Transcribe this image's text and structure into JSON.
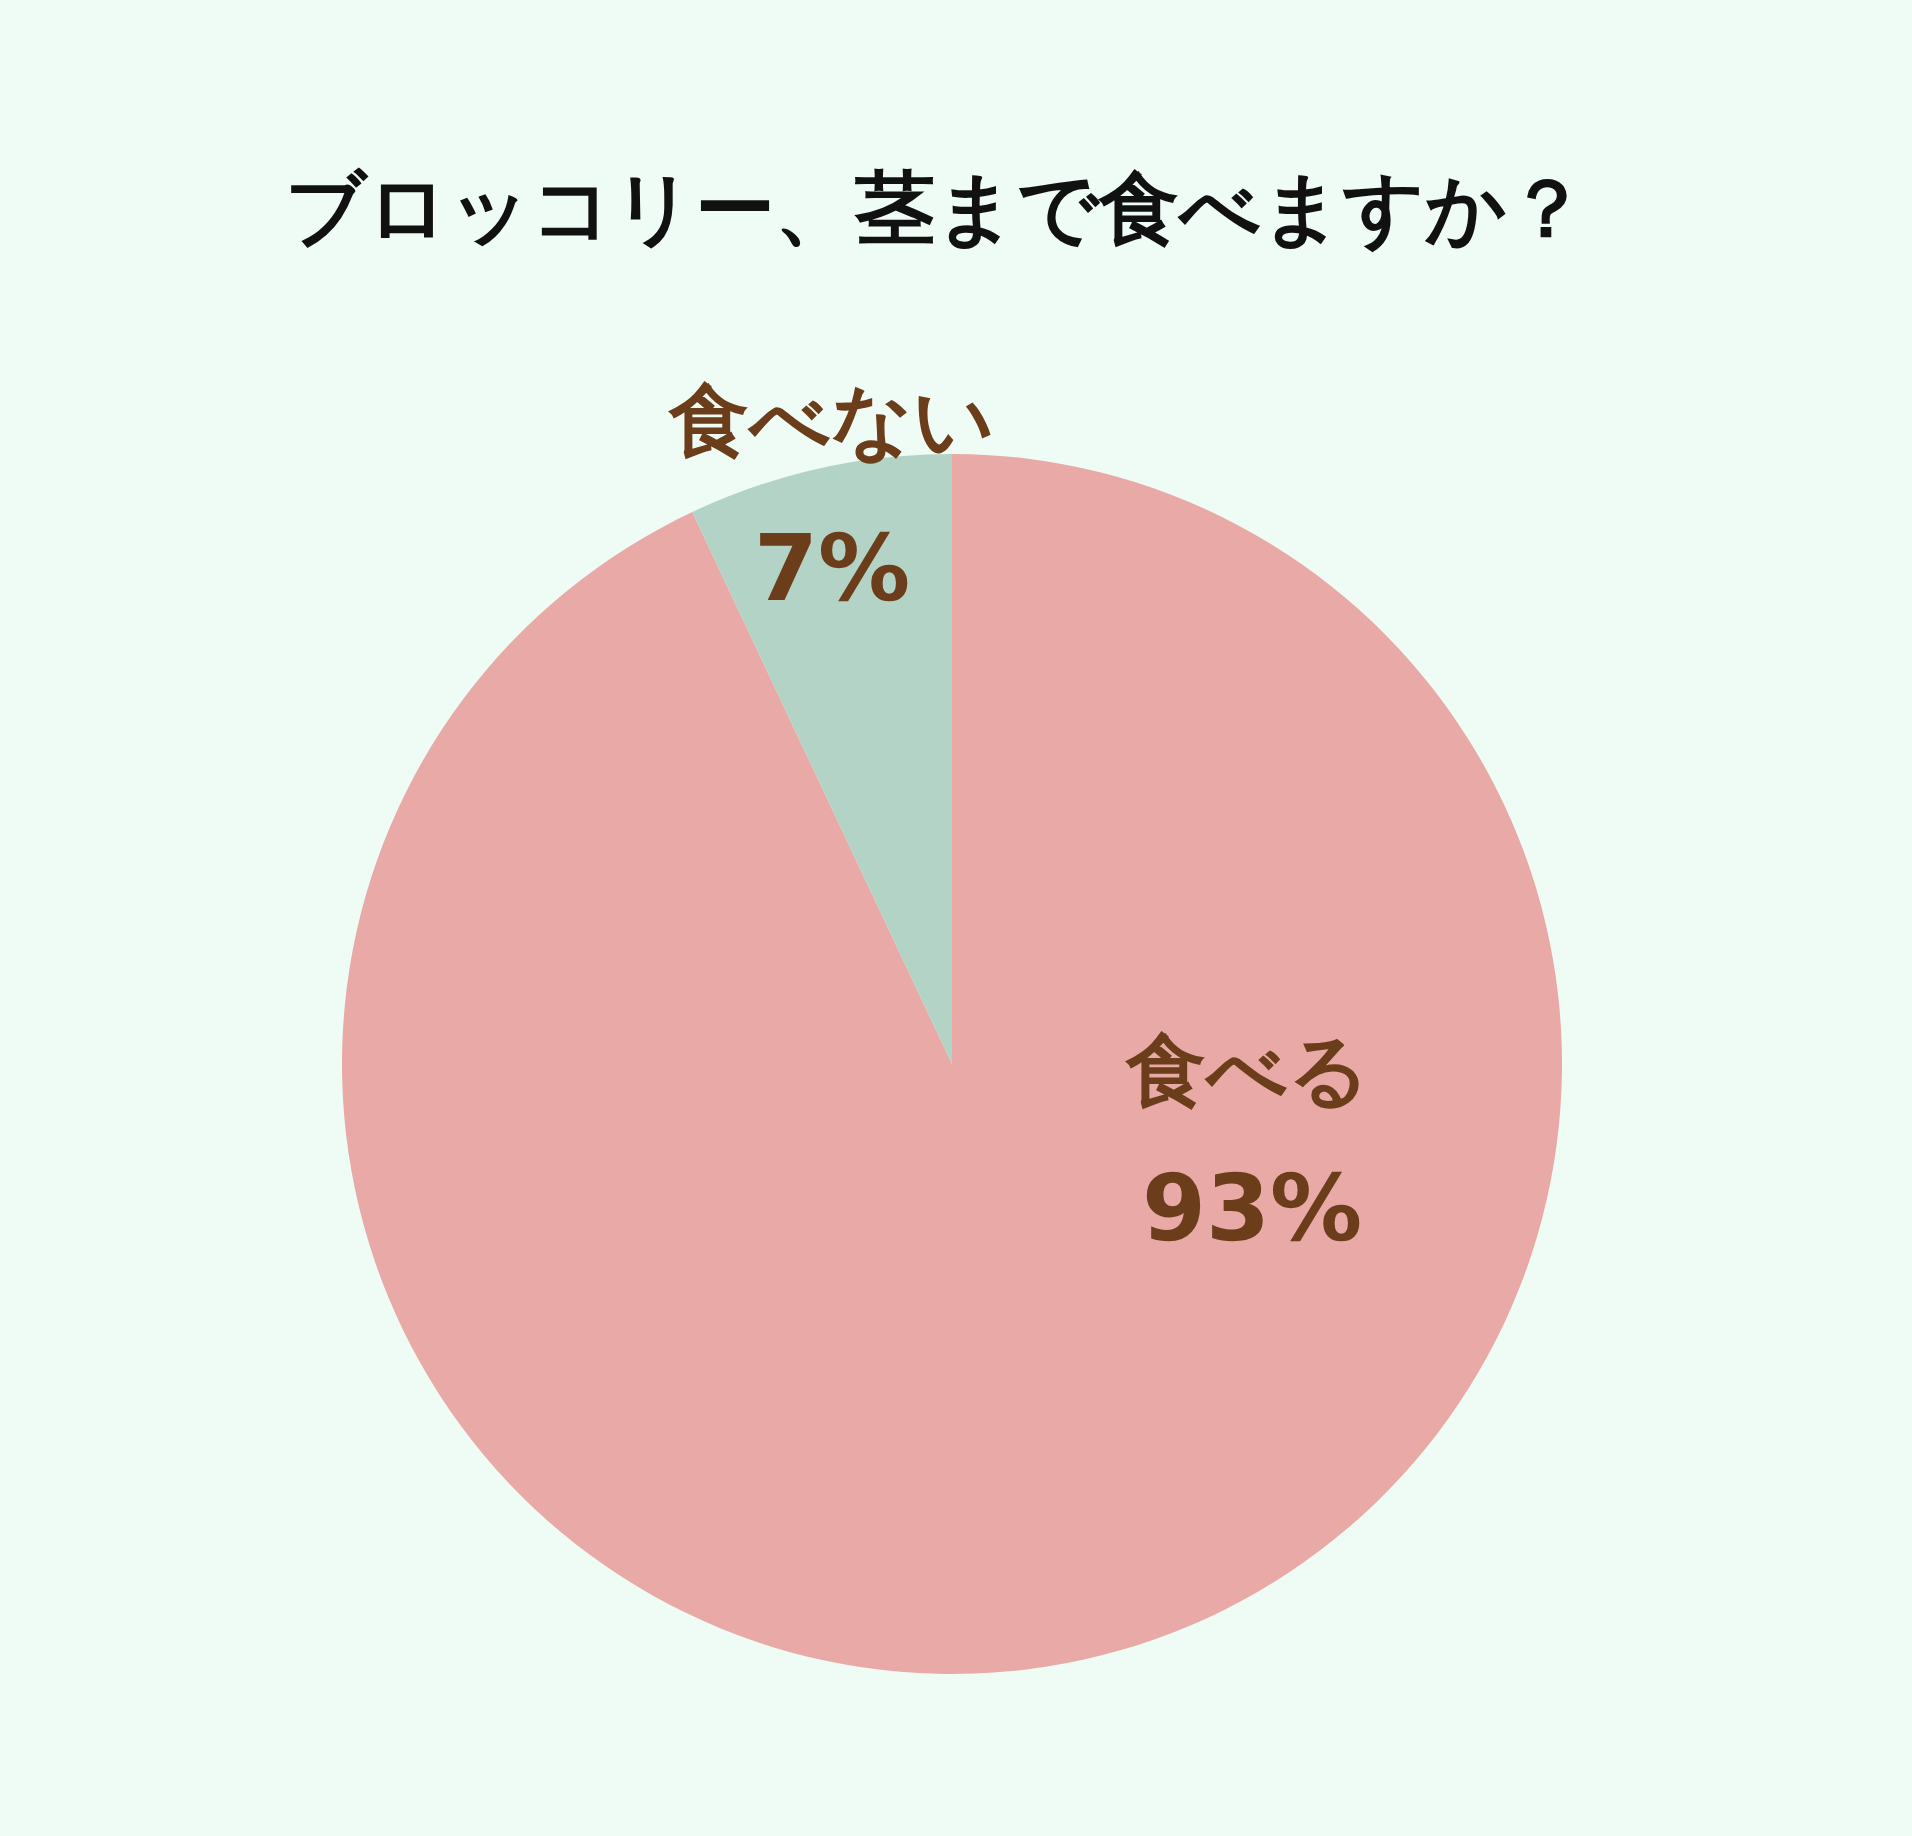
{
  "chart_data": {
    "type": "pie",
    "title": "ブロッコリー、茎まで食べますか？",
    "categories": [
      "食べる",
      "食べない"
    ],
    "values": [
      93,
      7
    ],
    "value_labels": [
      "93%",
      "7%"
    ],
    "colors": [
      "#e8a9a7",
      "#b2d3c6"
    ]
  }
}
